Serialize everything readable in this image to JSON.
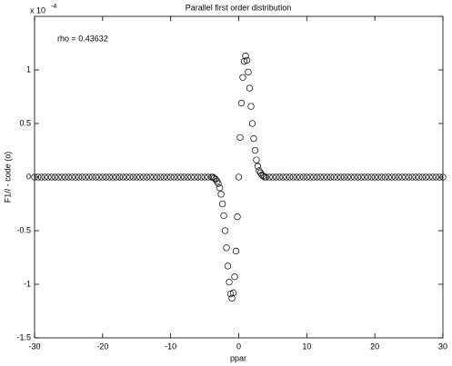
{
  "chart_data": {
    "type": "scatter",
    "title": "Parallel first order distribution",
    "xlabel": "ppar",
    "ylabel": "F1// - code (o)",
    "annotation": "rho = 0.43632",
    "y_multiplier": "x 10",
    "y_multiplier_exponent": "-4",
    "xlim": [
      -30,
      30
    ],
    "ylim": [
      -1.5,
      1.5
    ],
    "xticks": [
      -30,
      -20,
      -10,
      0,
      10,
      20,
      30
    ],
    "yticks": [
      -1.5,
      -1,
      -0.5,
      0,
      0.5,
      1
    ],
    "marker_color": "#000000",
    "x": [
      -30,
      -29.5,
      -29,
      -28.5,
      -28,
      -27.5,
      -27,
      -26.5,
      -26,
      -25.5,
      -25,
      -24.5,
      -24,
      -23.5,
      -23,
      -22.5,
      -22,
      -21.5,
      -21,
      -20.5,
      -20,
      -19.5,
      -19,
      -18.5,
      -18,
      -17.5,
      -17,
      -16.5,
      -16,
      -15.5,
      -15,
      -14.5,
      -14,
      -13.5,
      -13,
      -12.5,
      -12,
      -11.5,
      -11,
      -10.5,
      -10,
      -9.5,
      -9,
      -8.5,
      -8,
      -7.5,
      -7,
      -6.5,
      -6,
      -5.5,
      -5,
      -4.5,
      -4,
      -3.8,
      -3.6,
      -3.4,
      -3.2,
      -3,
      -2.8,
      -2.6,
      -2.4,
      -2.2,
      -2,
      -1.8,
      -1.6,
      -1.4,
      -1.2,
      -1,
      -0.8,
      -0.6,
      -0.4,
      -0.2,
      0,
      0.2,
      0.4,
      0.6,
      0.8,
      1,
      1.2,
      1.4,
      1.6,
      1.8,
      2,
      2.2,
      2.4,
      2.6,
      2.8,
      3,
      3.2,
      3.4,
      3.6,
      3.8,
      4,
      4.5,
      5,
      5.5,
      6,
      6.5,
      7,
      7.5,
      8,
      8.5,
      9,
      9.5,
      10,
      10.5,
      11,
      11.5,
      12,
      12.5,
      13,
      13.5,
      14,
      14.5,
      15,
      15.5,
      16,
      16.5,
      17,
      17.5,
      18,
      18.5,
      19,
      19.5,
      20,
      20.5,
      21,
      21.5,
      22,
      22.5,
      23,
      23.5,
      24,
      24.5,
      25,
      25.5,
      26,
      26.5,
      27,
      27.5,
      28,
      28.5,
      29,
      29.5,
      30
    ],
    "values": [
      0,
      0,
      0,
      0,
      0,
      0,
      0,
      0,
      0,
      0,
      0,
      0,
      0,
      0,
      0,
      0,
      0,
      0,
      0,
      0,
      0,
      0,
      0,
      0,
      0,
      0,
      0,
      0,
      0,
      0,
      0,
      0,
      0,
      0,
      0,
      0,
      0,
      0,
      0,
      0,
      0,
      0,
      0,
      0,
      0,
      0,
      0,
      0,
      0,
      0,
      0,
      0,
      0,
      0,
      -0.01,
      -0.02,
      -0.04,
      -0.06,
      -0.1,
      -0.16,
      -0.25,
      -0.36,
      -0.5,
      -0.66,
      -0.83,
      -0.98,
      -1.09,
      -1.13,
      -1.08,
      -0.93,
      -0.69,
      -0.37,
      0,
      0.37,
      0.69,
      0.93,
      1.08,
      1.13,
      1.09,
      0.98,
      0.83,
      0.66,
      0.5,
      0.36,
      0.25,
      0.16,
      0.1,
      0.06,
      0.04,
      0.02,
      0.01,
      0,
      0,
      0,
      0,
      0,
      0,
      0,
      0,
      0,
      0,
      0,
      0,
      0,
      0,
      0,
      0,
      0,
      0,
      0,
      0,
      0,
      0,
      0,
      0,
      0,
      0,
      0,
      0,
      0,
      0,
      0,
      0,
      0,
      0,
      0,
      0,
      0,
      0,
      0,
      0,
      0,
      0,
      0,
      0,
      0,
      0,
      0,
      0,
      0,
      0,
      0,
      0,
      0,
      0
    ]
  }
}
